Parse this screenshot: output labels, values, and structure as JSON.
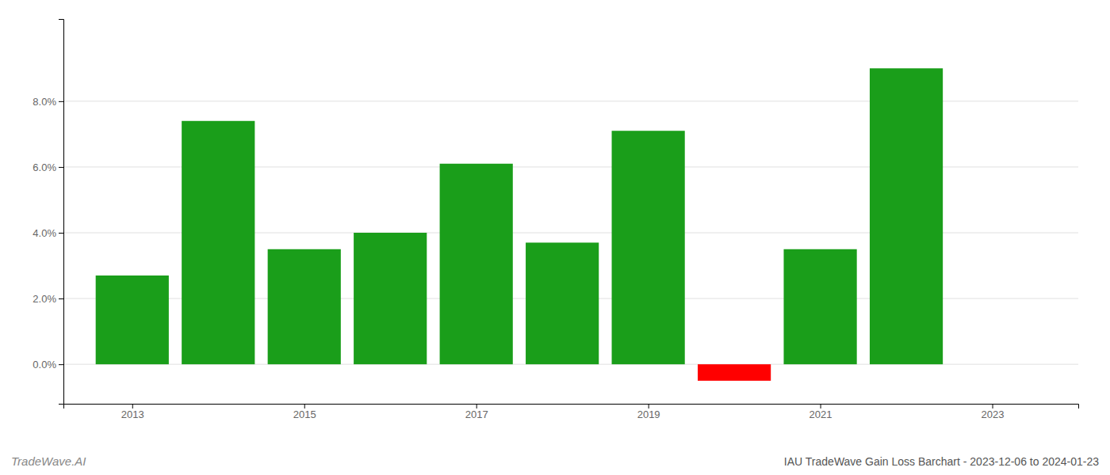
{
  "chart_data": {
    "type": "bar",
    "title": "IAU TradeWave Gain Loss Barchart - 2023-12-06 to 2024-01-23",
    "annotations": [
      "TradeWave.AI"
    ],
    "x": [
      2013,
      2014,
      2015,
      2016,
      2017,
      2018,
      2019,
      2020,
      2021,
      2022
    ],
    "values": [
      0.027,
      0.074,
      0.035,
      0.04,
      0.061,
      0.037,
      0.071,
      -0.005,
      0.035,
      0.09
    ],
    "colors": [
      "#1a9e1a",
      "#1a9e1a",
      "#1a9e1a",
      "#1a9e1a",
      "#1a9e1a",
      "#1a9e1a",
      "#1a9e1a",
      "#ff0000",
      "#1a9e1a",
      "#1a9e1a"
    ],
    "xlim": [
      2012.2,
      2024.0
    ],
    "xticks": [
      2013,
      2015,
      2017,
      2019,
      2021,
      2023
    ],
    "ylim": [
      -0.012,
      0.105
    ],
    "yticks": [
      {
        "value": 0.0,
        "label": "0.0%"
      },
      {
        "value": 0.02,
        "label": "2.0%"
      },
      {
        "value": 0.04,
        "label": "4.0%"
      },
      {
        "value": 0.06,
        "label": "6.0%"
      },
      {
        "value": 0.08,
        "label": "8.0%"
      }
    ],
    "grid": true
  }
}
